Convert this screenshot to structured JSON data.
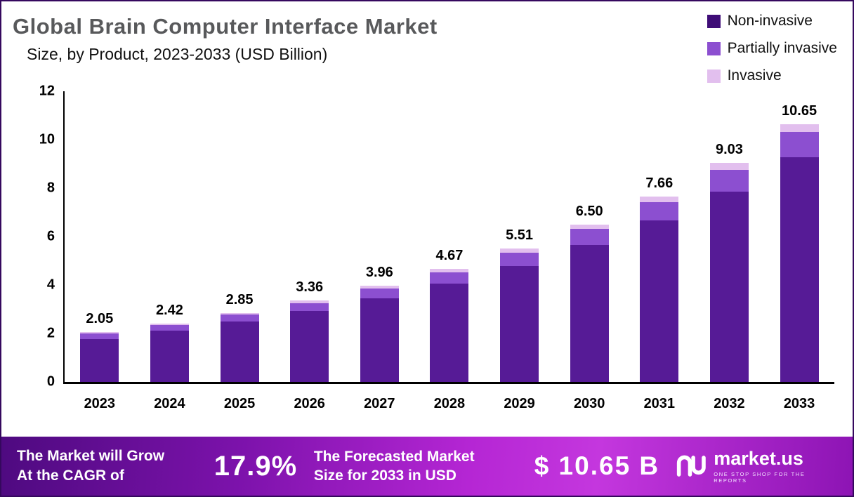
{
  "header": {
    "title": "Global Brain Computer Interface Market",
    "subtitle": "Size, by Product, 2023-2033 (USD Billion)"
  },
  "legend": [
    {
      "label": "Non-invasive",
      "color": "#3f0d77"
    },
    {
      "label": "Partially invasive",
      "color": "#8c4fd0"
    },
    {
      "label": "Invasive",
      "color": "#e2bfee"
    }
  ],
  "chart_data": {
    "type": "bar",
    "stacked": true,
    "title": "Global Brain Computer Interface Market Size, by Product, 2023-2033 (USD Billion)",
    "categories": [
      "2023",
      "2024",
      "2025",
      "2026",
      "2027",
      "2028",
      "2029",
      "2030",
      "2031",
      "2032",
      "2033"
    ],
    "series": [
      {
        "name": "Non-invasive",
        "color": "#561b96",
        "values": [
          1.78,
          2.11,
          2.48,
          2.92,
          3.45,
          4.06,
          4.79,
          5.66,
          6.66,
          7.86,
          9.27
        ]
      },
      {
        "name": "Partially invasive",
        "color": "#8c4fd0",
        "values": [
          0.21,
          0.24,
          0.29,
          0.34,
          0.4,
          0.47,
          0.55,
          0.65,
          0.77,
          0.9,
          1.06
        ]
      },
      {
        "name": "Invasive",
        "color": "#e2bfee",
        "values": [
          0.06,
          0.07,
          0.08,
          0.1,
          0.11,
          0.14,
          0.17,
          0.19,
          0.23,
          0.27,
          0.32
        ]
      }
    ],
    "totals": [
      "2.05",
      "2.42",
      "2.85",
      "3.36",
      "3.96",
      "4.67",
      "5.51",
      "6.50",
      "7.66",
      "9.03",
      "10.65"
    ],
    "xlabel": "",
    "ylabel": "",
    "ylim": [
      0,
      12
    ],
    "yticks": [
      0,
      2,
      4,
      6,
      8,
      10,
      12
    ],
    "grid": false,
    "legend_position": "top-right"
  },
  "banner": {
    "grow_line1": "The Market will Grow",
    "grow_line2": "At the CAGR of",
    "cagr": "17.9%",
    "forecast_line1": "The Forecasted Market",
    "forecast_line2": "Size for 2033 in USD",
    "forecast_value": "$ 10.65 B",
    "brand": "market.us",
    "tagline": "ONE STOP SHOP FOR THE REPORTS"
  }
}
